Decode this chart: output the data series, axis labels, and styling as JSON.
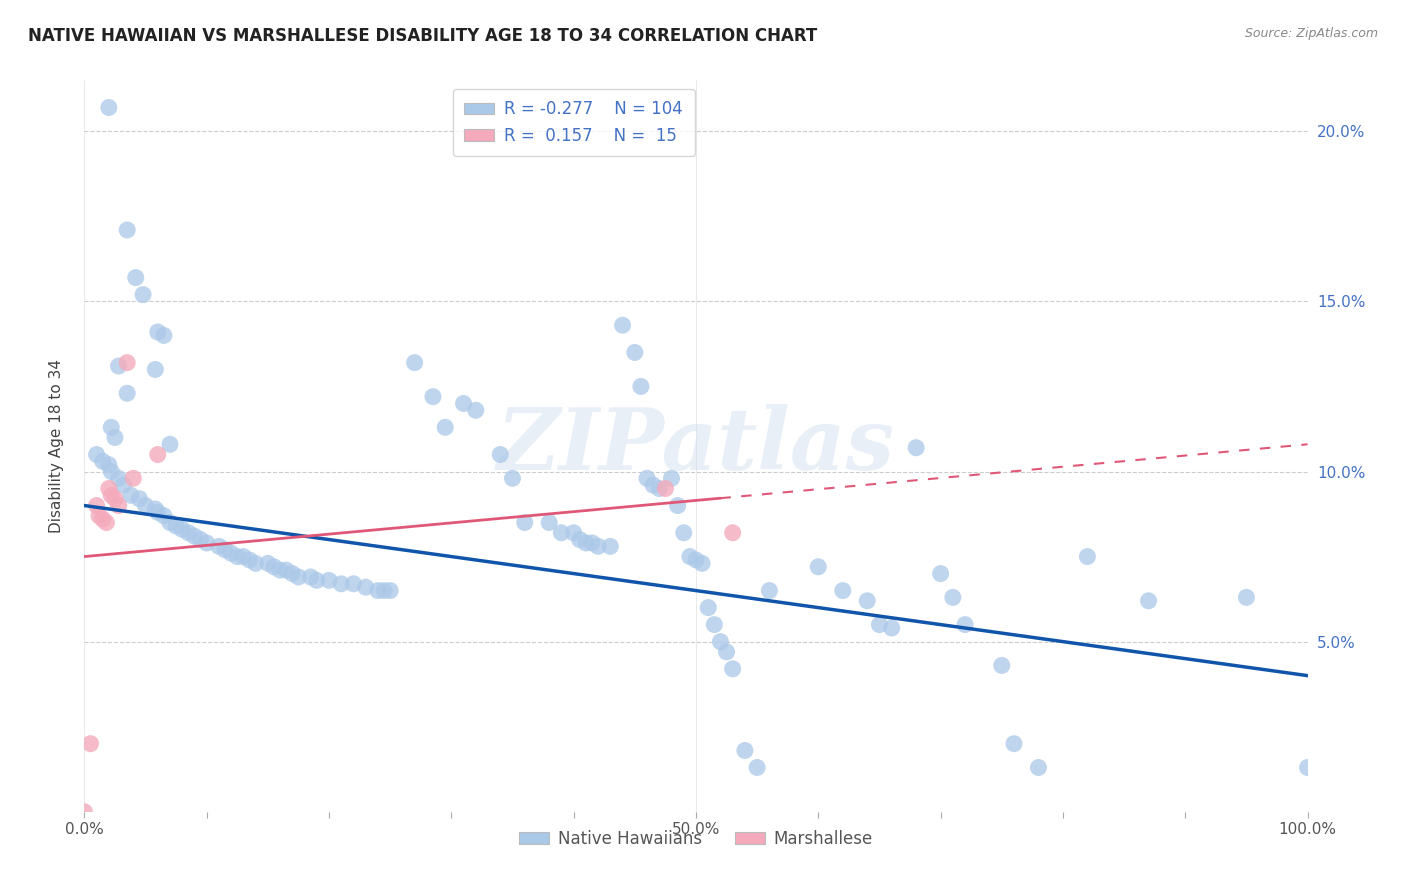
{
  "title": "NATIVE HAWAIIAN VS MARSHALLESE DISABILITY AGE 18 TO 34 CORRELATION CHART",
  "source": "Source: ZipAtlas.com",
  "ylabel": "Disability Age 18 to 34",
  "watermark": "ZIPatlas",
  "xmin": 0.0,
  "xmax": 1.0,
  "ymin": 0.0,
  "ymax": 0.215,
  "xtick_vals": [
    0.0,
    0.1,
    0.2,
    0.3,
    0.4,
    0.5,
    0.6,
    0.7,
    0.8,
    0.9,
    1.0
  ],
  "xtick_labels": [
    "0.0%",
    "",
    "",
    "",
    "",
    "50.0%",
    "",
    "",
    "",
    "",
    "100.0%"
  ],
  "ytick_vals": [
    0.0,
    0.05,
    0.1,
    0.15,
    0.2
  ],
  "ytick_labels_right": [
    "",
    "5.0%",
    "10.0%",
    "15.0%",
    "20.0%"
  ],
  "legend_r_blue": "-0.277",
  "legend_n_blue": "104",
  "legend_r_pink": "0.157",
  "legend_n_pink": "15",
  "blue_color": "#aac8e8",
  "pink_color": "#f4aabb",
  "blue_line_color": "#1155aa",
  "pink_line_color": "#e05878",
  "pink_line_solid_end": 0.52,
  "blue_line_y0": 0.09,
  "blue_line_y1": 0.04,
  "pink_line_y0": 0.075,
  "pink_line_y1": 0.108,
  "background_color": "#ffffff",
  "grid_color": "#cccccc",
  "blue_scatter": [
    [
      0.02,
      0.207
    ],
    [
      0.035,
      0.171
    ],
    [
      0.042,
      0.157
    ],
    [
      0.048,
      0.152
    ],
    [
      0.028,
      0.131
    ],
    [
      0.058,
      0.13
    ],
    [
      0.022,
      0.113
    ],
    [
      0.06,
      0.141
    ],
    [
      0.065,
      0.14
    ],
    [
      0.035,
      0.123
    ],
    [
      0.025,
      0.11
    ],
    [
      0.07,
      0.108
    ],
    [
      0.01,
      0.105
    ],
    [
      0.015,
      0.103
    ],
    [
      0.02,
      0.102
    ],
    [
      0.022,
      0.1
    ],
    [
      0.028,
      0.098
    ],
    [
      0.032,
      0.096
    ],
    [
      0.038,
      0.093
    ],
    [
      0.045,
      0.092
    ],
    [
      0.05,
      0.09
    ],
    [
      0.058,
      0.089
    ],
    [
      0.06,
      0.088
    ],
    [
      0.065,
      0.087
    ],
    [
      0.07,
      0.085
    ],
    [
      0.075,
      0.084
    ],
    [
      0.08,
      0.083
    ],
    [
      0.085,
      0.082
    ],
    [
      0.09,
      0.081
    ],
    [
      0.095,
      0.08
    ],
    [
      0.1,
      0.079
    ],
    [
      0.11,
      0.078
    ],
    [
      0.115,
      0.077
    ],
    [
      0.12,
      0.076
    ],
    [
      0.125,
      0.075
    ],
    [
      0.13,
      0.075
    ],
    [
      0.135,
      0.074
    ],
    [
      0.14,
      0.073
    ],
    [
      0.15,
      0.073
    ],
    [
      0.155,
      0.072
    ],
    [
      0.16,
      0.071
    ],
    [
      0.165,
      0.071
    ],
    [
      0.17,
      0.07
    ],
    [
      0.175,
      0.069
    ],
    [
      0.185,
      0.069
    ],
    [
      0.19,
      0.068
    ],
    [
      0.2,
      0.068
    ],
    [
      0.21,
      0.067
    ],
    [
      0.22,
      0.067
    ],
    [
      0.23,
      0.066
    ],
    [
      0.24,
      0.065
    ],
    [
      0.245,
      0.065
    ],
    [
      0.25,
      0.065
    ],
    [
      0.27,
      0.132
    ],
    [
      0.285,
      0.122
    ],
    [
      0.295,
      0.113
    ],
    [
      0.31,
      0.12
    ],
    [
      0.32,
      0.118
    ],
    [
      0.34,
      0.105
    ],
    [
      0.35,
      0.098
    ],
    [
      0.36,
      0.085
    ],
    [
      0.38,
      0.085
    ],
    [
      0.39,
      0.082
    ],
    [
      0.4,
      0.082
    ],
    [
      0.405,
      0.08
    ],
    [
      0.41,
      0.079
    ],
    [
      0.415,
      0.079
    ],
    [
      0.42,
      0.078
    ],
    [
      0.43,
      0.078
    ],
    [
      0.44,
      0.143
    ],
    [
      0.45,
      0.135
    ],
    [
      0.455,
      0.125
    ],
    [
      0.46,
      0.098
    ],
    [
      0.465,
      0.096
    ],
    [
      0.47,
      0.095
    ],
    [
      0.48,
      0.098
    ],
    [
      0.485,
      0.09
    ],
    [
      0.49,
      0.082
    ],
    [
      0.495,
      0.075
    ],
    [
      0.5,
      0.074
    ],
    [
      0.505,
      0.073
    ],
    [
      0.51,
      0.06
    ],
    [
      0.515,
      0.055
    ],
    [
      0.52,
      0.05
    ],
    [
      0.525,
      0.047
    ],
    [
      0.53,
      0.042
    ],
    [
      0.54,
      0.018
    ],
    [
      0.55,
      0.013
    ],
    [
      0.56,
      0.065
    ],
    [
      0.6,
      0.072
    ],
    [
      0.62,
      0.065
    ],
    [
      0.64,
      0.062
    ],
    [
      0.65,
      0.055
    ],
    [
      0.66,
      0.054
    ],
    [
      0.68,
      0.107
    ],
    [
      0.7,
      0.07
    ],
    [
      0.71,
      0.063
    ],
    [
      0.72,
      0.055
    ],
    [
      0.75,
      0.043
    ],
    [
      0.76,
      0.02
    ],
    [
      0.78,
      0.013
    ],
    [
      0.82,
      0.075
    ],
    [
      0.87,
      0.062
    ],
    [
      0.95,
      0.063
    ],
    [
      1.0,
      0.013
    ]
  ],
  "pink_scatter": [
    [
      0.0,
      0.0
    ],
    [
      0.005,
      0.02
    ],
    [
      0.01,
      0.09
    ],
    [
      0.012,
      0.087
    ],
    [
      0.015,
      0.086
    ],
    [
      0.018,
      0.085
    ],
    [
      0.02,
      0.095
    ],
    [
      0.022,
      0.093
    ],
    [
      0.025,
      0.092
    ],
    [
      0.028,
      0.09
    ],
    [
      0.035,
      0.132
    ],
    [
      0.04,
      0.098
    ],
    [
      0.06,
      0.105
    ],
    [
      0.475,
      0.095
    ],
    [
      0.53,
      0.082
    ]
  ]
}
